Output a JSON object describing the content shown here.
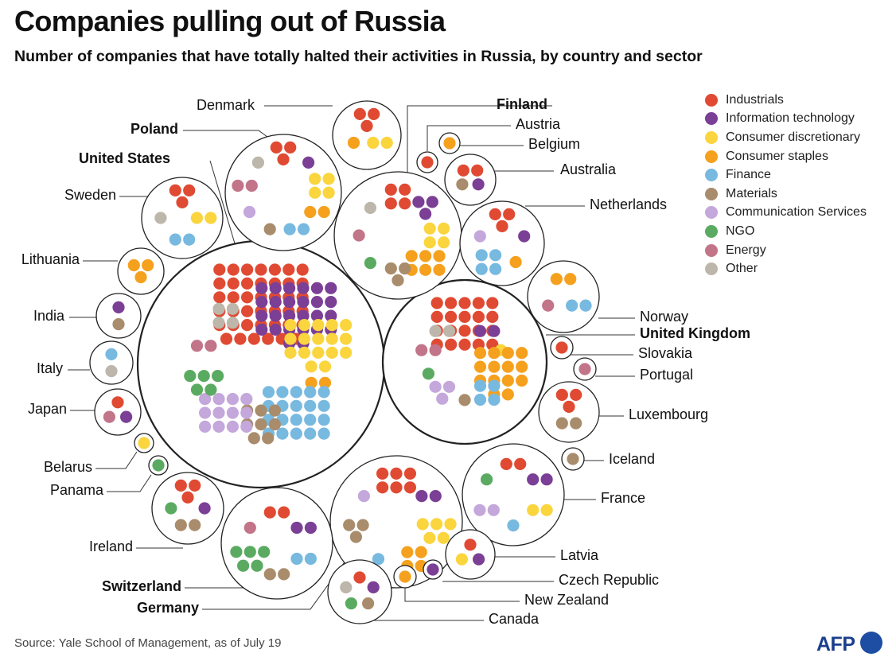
{
  "title": "Companies pulling out of Russia",
  "subtitle": "Number of companies that have totally halted their activities in Russia, by country and sector",
  "source": "Source: Yale School of Management, as of July 19",
  "logo_text": "AFP",
  "colors": {
    "Industrials": "#e04a33",
    "Information technology": "#7b3f96",
    "Consumer discretionary": "#fad53e",
    "Consumer staples": "#f5a11e",
    "Finance": "#78b9e0",
    "Materials": "#a88c6c",
    "Communication Services": "#c4a7db",
    "NGO": "#5aab61",
    "Energy": "#c27489",
    "Other": "#bdb6ab"
  },
  "chart_data": {
    "type": "packed-bubble dot chart",
    "legend": [
      "Industrials",
      "Information technology",
      "Consumer discretionary",
      "Consumer staples",
      "Finance",
      "Materials",
      "Communication Services",
      "NGO",
      "Energy",
      "Other"
    ],
    "countries": [
      {
        "name": "United States",
        "bold": true,
        "sectors": {
          "Industrials": 41,
          "Information technology": 26,
          "Consumer discretionary": 17,
          "Consumer staples": 2,
          "Finance": 20,
          "Materials": 8,
          "Communication Services": 12,
          "NGO": 5,
          "Energy": 2,
          "Other": 4
        }
      },
      {
        "name": "United Kingdom",
        "bold": true,
        "sectors": {
          "Industrials": 20,
          "Information technology": 2,
          "Consumer discretionary": 1,
          "Consumer staples": 14,
          "Finance": 4,
          "Materials": 1,
          "Communication Services": 3,
          "NGO": 1,
          "Energy": 2,
          "Other": 2
        }
      },
      {
        "name": "Finland",
        "bold": true,
        "sectors": {
          "Industrials": 4,
          "Information technology": 3,
          "Consumer discretionary": 4,
          "Consumer staples": 6,
          "Materials": 3,
          "NGO": 1,
          "Energy": 1,
          "Other": 1
        }
      },
      {
        "name": "Germany",
        "bold": true,
        "sectors": {
          "Industrials": 6,
          "Information technology": 2,
          "Consumer discretionary": 5,
          "Consumer staples": 4,
          "Finance": 1,
          "Materials": 3,
          "Communication Services": 1
        }
      },
      {
        "name": "Switzerland",
        "bold": true,
        "sectors": {
          "Industrials": 2,
          "Information technology": 2,
          "Finance": 2,
          "Materials": 2,
          "NGO": 5,
          "Energy": 1
        }
      },
      {
        "name": "Poland",
        "bold": true,
        "sectors": {
          "Industrials": 3,
          "Information technology": 1,
          "Consumer discretionary": 4,
          "Consumer staples": 2,
          "Finance": 2,
          "Materials": 1,
          "Communication Services": 1,
          "Energy": 2,
          "Other": 1
        }
      },
      {
        "name": "Denmark",
        "sectors": {
          "Industrials": 3,
          "Consumer discretionary": 2,
          "Consumer staples": 1
        }
      },
      {
        "name": "Austria",
        "sectors": {
          "Industrials": 1
        }
      },
      {
        "name": "Belgium",
        "sectors": {
          "Consumer staples": 1
        }
      },
      {
        "name": "Australia",
        "sectors": {
          "Industrials": 2,
          "Information technology": 1,
          "Materials": 1
        }
      },
      {
        "name": "Netherlands",
        "sectors": {
          "Industrials": 3,
          "Information technology": 1,
          "Consumer staples": 1,
          "Finance": 4,
          "Communication Services": 1
        }
      },
      {
        "name": "Sweden",
        "sectors": {
          "Industrials": 3,
          "Consumer discretionary": 2,
          "Finance": 2,
          "Other": 1
        }
      },
      {
        "name": "Lithuania",
        "sectors": {
          "Consumer staples": 3
        }
      },
      {
        "name": "India",
        "sectors": {
          "Information technology": 1,
          "Materials": 1
        }
      },
      {
        "name": "Italy",
        "sectors": {
          "Finance": 1,
          "Other": 1
        }
      },
      {
        "name": "Japan",
        "sectors": {
          "Industrials": 1,
          "Information technology": 1,
          "Energy": 1
        }
      },
      {
        "name": "Belarus",
        "sectors": {
          "Consumer discretionary": 1
        }
      },
      {
        "name": "Panama",
        "sectors": {
          "NGO": 1
        }
      },
      {
        "name": "Ireland",
        "sectors": {
          "Industrials": 3,
          "Information technology": 1,
          "Materials": 2,
          "NGO": 1
        }
      },
      {
        "name": "Norway",
        "sectors": {
          "Consumer staples": 2,
          "Finance": 2,
          "Energy": 1
        }
      },
      {
        "name": "Slovakia",
        "sectors": {
          "Industrials": 1
        }
      },
      {
        "name": "Portugal",
        "sectors": {
          "Energy": 1
        }
      },
      {
        "name": "Luxembourg",
        "sectors": {
          "Industrials": 3,
          "Materials": 2
        }
      },
      {
        "name": "Iceland",
        "sectors": {
          "Materials": 1
        }
      },
      {
        "name": "France",
        "sectors": {
          "Industrials": 2,
          "Information technology": 2,
          "Consumer discretionary": 2,
          "Finance": 1,
          "Communication Services": 2,
          "NGO": 1
        }
      },
      {
        "name": "Latvia",
        "sectors": {
          "Industrials": 1,
          "Information technology": 1,
          "Consumer discretionary": 1
        }
      },
      {
        "name": "Czech Republic",
        "sectors": {
          "Information technology": 1
        }
      },
      {
        "name": "New Zealand",
        "sectors": {
          "Consumer staples": 1
        }
      },
      {
        "name": "Canada",
        "sectors": {
          "Industrials": 1,
          "Information technology": 1,
          "Materials": 1,
          "NGO": 1,
          "Other": 1
        }
      }
    ]
  }
}
